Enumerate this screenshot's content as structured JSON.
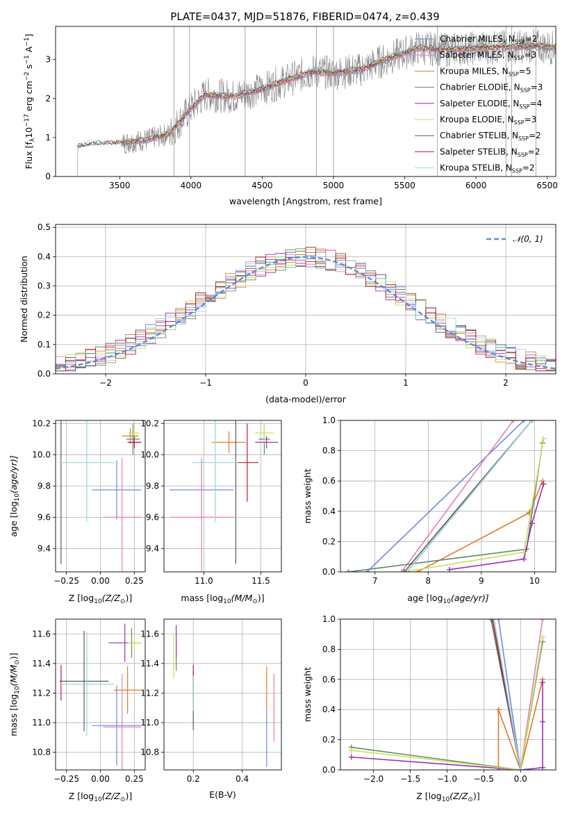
{
  "figure": {
    "title": "PLATE=0437, MJD=51876, FIBERID=0474, z=0.439"
  },
  "colors": {
    "Chabrier MILES": "#6a8ad8",
    "Salpeter MILES": "#e57fb4",
    "Kroupa MILES": "#e0782a",
    "Chabrier ELODIE": "#5f8a5f",
    "Salpeter ELODIE": "#9a2fb0",
    "Kroupa ELODIE": "#c5e05a",
    "Chabrier STELIB": "#5a5a5a",
    "Salpeter STELIB": "#b3202a",
    "Kroupa STELIB": "#93d6da",
    "data": "#808080",
    "gaussian": "#5b8ad6"
  },
  "chart_data": [
    {
      "id": "spectrum",
      "type": "line",
      "xlabel": "wavelength [Angstrom, rest frame]",
      "ylabel": "Flux [f",
      "ylabel_sub": "λ",
      "ylabel_rest": "10",
      "ylabel_exp1": "−17",
      "ylabel_mid": " erg cm",
      "ylabel_exp2": "−2",
      "ylabel_mid2": " s",
      "ylabel_exp3": "−1",
      "ylabel_mid3": " A",
      "ylabel_exp4": "−1",
      "ylabel_end": "]",
      "xlim": [
        3050,
        6560
      ],
      "ylim": [
        0,
        3.85
      ],
      "xticks": [
        3500,
        4000,
        4500,
        5000,
        5500,
        6000,
        6500
      ],
      "yticks": [
        0,
        1,
        2,
        3
      ],
      "grid": false,
      "legend_position": "top-right",
      "legend": [
        {
          "name": "Chabrier MILES",
          "nssp": "2"
        },
        {
          "name": "Salpeter MILES",
          "nssp": "3"
        },
        {
          "name": "Kroupa MILES",
          "nssp": "5"
        },
        {
          "name": "Chabrier ELODIE",
          "nssp": "3"
        },
        {
          "name": "Salpeter ELODIE",
          "nssp": "4"
        },
        {
          "name": "Kroupa ELODIE",
          "nssp": "3"
        },
        {
          "name": "Chabrier STELIB",
          "nssp": "2"
        },
        {
          "name": "Salpeter STELIB",
          "nssp": "2"
        },
        {
          "name": "Kroupa STELIB",
          "nssp": "2"
        }
      ],
      "legend_nssp_label": "N",
      "legend_nssp_sub": "SSP",
      "continuum_points": {
        "x": [
          3200,
          3300,
          3500,
          3700,
          3850,
          4000,
          4100,
          4300,
          4500,
          4700,
          4860,
          5000,
          5200,
          5400,
          5600,
          5800,
          6000,
          6200,
          6400,
          6560
        ],
        "y": [
          0.75,
          0.82,
          0.85,
          0.95,
          1.1,
          1.75,
          2.1,
          2.05,
          2.25,
          2.5,
          2.7,
          2.65,
          2.75,
          3.05,
          3.3,
          3.25,
          3.3,
          3.32,
          3.35,
          3.3
        ]
      },
      "noise_spikes": [
        3880,
        3990,
        4380,
        4880,
        5000,
        5730,
        6210,
        6250,
        6420
      ]
    },
    {
      "id": "residuals",
      "type": "histogram",
      "xlabel": "(data-model)/error",
      "ylabel": "Normed distribution",
      "xlim": [
        -2.5,
        2.5
      ],
      "ylim": [
        0,
        0.51
      ],
      "xticks": [
        -2,
        -1,
        0,
        1,
        2
      ],
      "xtick_labels": [
        "−2",
        "−1",
        "0",
        "1",
        "2"
      ],
      "yticks": [
        0.0,
        0.1,
        0.2,
        0.3,
        0.4,
        0.5
      ],
      "ytick_labels": [
        "0.0",
        "0.1",
        "0.2",
        "0.3",
        "0.4",
        "0.5"
      ],
      "grid": true,
      "legend": "𝒩(0, 1)",
      "legend_position": "top-right",
      "bin_width": 0.1,
      "bins_start": -2.5
    },
    {
      "id": "age_vs_Z",
      "type": "scatter",
      "xlabel": "Z [log",
      "xlabel_sub": "10",
      "xlabel_rest": "(Z/Z",
      "xlabel_end": ")]",
      "ylabel": "age  [log",
      "ylabel_sub": "10",
      "ylabel_rest": "(age/yr)]",
      "xlim": [
        -0.33,
        0.33
      ],
      "ylim": [
        9.25,
        10.22
      ],
      "xticks": [
        -0.25,
        0.0,
        0.25
      ],
      "xtick_labels": [
        "−0.25",
        "0.00",
        "0.25"
      ],
      "yticks": [
        9.4,
        9.6,
        9.8,
        10.0,
        10.2
      ],
      "ytick_labels": [
        "9.4",
        "9.6",
        "9.8",
        "10.0",
        "10.2"
      ],
      "points": [
        {
          "model": "Chabrier MILES",
          "x": 0.12,
          "y": 9.775,
          "xerr": 0.18,
          "yerr": 0.19
        },
        {
          "model": "Salpeter MILES",
          "x": 0.16,
          "y": 9.6,
          "xerr": 0.14,
          "yerr": 0.38
        },
        {
          "model": "Kroupa MILES",
          "x": 0.22,
          "y": 10.12,
          "xerr": 0.06,
          "yerr": 0.05
        },
        {
          "model": "Chabrier ELODIE",
          "x": 0.24,
          "y": 10.1,
          "xerr": 0.05,
          "yerr": 0.1
        },
        {
          "model": "Salpeter ELODIE",
          "x": 0.25,
          "y": 10.08,
          "xerr": 0.05,
          "yerr": 0.03
        },
        {
          "model": "Kroupa ELODIE",
          "x": 0.25,
          "y": 10.14,
          "xerr": 0.04,
          "yerr": 0.06
        },
        {
          "model": "Chabrier STELIB",
          "x": -0.29,
          "y": 9.95,
          "xerr": 0.0,
          "yerr": 0.65
        },
        {
          "model": "Salpeter STELIB",
          "x": 0.25,
          "y": 10.08,
          "xerr": 0.05,
          "yerr": 0.04
        },
        {
          "model": "Kroupa STELIB",
          "x": -0.1,
          "y": 9.95,
          "xerr": 0.2,
          "yerr": 0.38
        }
      ]
    },
    {
      "id": "age_vs_mass",
      "type": "scatter",
      "xlabel": "mass [log",
      "xlabel_sub": "10",
      "xlabel_rest": "(M/M",
      "xlabel_end": ")]",
      "xlim": [
        10.65,
        11.68
      ],
      "ylim": [
        9.25,
        10.22
      ],
      "xticks": [
        11.0,
        11.5
      ],
      "xtick_labels": [
        "11.0",
        "11.5"
      ],
      "yticks": [
        9.4,
        9.6,
        9.8,
        10.0,
        10.2
      ],
      "ytick_labels": [
        "9.4",
        "9.6",
        "9.8",
        "10.0",
        "10.2"
      ],
      "points": [
        {
          "model": "Chabrier MILES",
          "x": 10.98,
          "y": 9.775,
          "xerr": 0.28,
          "yerr": 0.19
        },
        {
          "model": "Salpeter MILES",
          "x": 10.98,
          "y": 9.6,
          "xerr": 0.28,
          "yerr": 0.38
        },
        {
          "model": "Kroupa MILES",
          "x": 11.22,
          "y": 10.08,
          "xerr": 0.15,
          "yerr": 0.07
        },
        {
          "model": "Chabrier ELODIE",
          "x": 11.53,
          "y": 10.1,
          "xerr": 0.05,
          "yerr": 0.1
        },
        {
          "model": "Salpeter ELODIE",
          "x": 11.55,
          "y": 10.08,
          "xerr": 0.1,
          "yerr": 0.04
        },
        {
          "model": "Kroupa ELODIE",
          "x": 11.53,
          "y": 10.14,
          "xerr": 0.08,
          "yerr": 0.06
        },
        {
          "model": "Chabrier STELIB",
          "x": 11.28,
          "y": 9.95,
          "xerr": 0.0,
          "yerr": 0.65
        },
        {
          "model": "Salpeter STELIB",
          "x": 11.38,
          "y": 9.95,
          "xerr": 0.1,
          "yerr": 0.25
        },
        {
          "model": "Kroupa STELIB",
          "x": 11.1,
          "y": 9.95,
          "xerr": 0.2,
          "yerr": 0.38
        }
      ]
    },
    {
      "id": "weight_vs_age",
      "type": "line",
      "xlabel": "age  [log",
      "xlabel_sub": "10",
      "xlabel_rest": "(age/yr)]",
      "ylabel": "mass weight",
      "xlim": [
        6.35,
        10.4
      ],
      "ylim": [
        0,
        1
      ],
      "xticks": [
        7,
        8,
        9,
        10
      ],
      "yticks": [
        0.0,
        0.2,
        0.4,
        0.6,
        0.8,
        1.0
      ],
      "ytick_labels": [
        "0.0",
        "0.2",
        "0.4",
        "0.6",
        "0.8",
        "1.0"
      ],
      "grid": true,
      "series": [
        {
          "model": "Chabrier MILES",
          "x": [
            6.85,
            9.8
          ],
          "y": [
            0.0,
            1.0
          ]
        },
        {
          "model": "Salpeter MILES",
          "x": [
            7.5,
            9.6
          ],
          "y": [
            0.0,
            1.0
          ]
        },
        {
          "model": "Kroupa MILES",
          "x": [
            7.8,
            9.9,
            10.15
          ],
          "y": [
            0.0,
            0.39,
            0.6
          ]
        },
        {
          "model": "Chabrier ELODIE",
          "x": [
            6.5,
            9.85,
            10.15
          ],
          "y": [
            0.0,
            0.15,
            0.85
          ]
        },
        {
          "model": "Salpeter ELODIE",
          "x": [
            8.4,
            9.8,
            9.95,
            10.17
          ],
          "y": [
            0.015,
            0.085,
            0.32,
            0.58
          ]
        },
        {
          "model": "Kroupa ELODIE",
          "x": [
            7.55,
            9.8,
            10.17
          ],
          "y": [
            0.0,
            0.13,
            0.88
          ]
        },
        {
          "model": "Chabrier STELIB",
          "x": [
            7.55,
            9.95
          ],
          "y": [
            0.0,
            1.0
          ]
        },
        {
          "model": "Salpeter STELIB",
          "x": [
            7.6,
            9.95
          ],
          "y": [
            0.0,
            1.0
          ]
        },
        {
          "model": "Kroupa STELIB",
          "x": [
            7.6,
            9.95
          ],
          "y": [
            0.0,
            1.0
          ]
        }
      ]
    },
    {
      "id": "mass_vs_Z",
      "type": "scatter",
      "xlabel": "Z [log",
      "xlabel_sub": "10",
      "xlabel_rest": "(Z/Z",
      "xlabel_end": ")]",
      "ylabel": "mass [log",
      "ylabel_sub": "10",
      "ylabel_rest": "(M/M",
      "ylabel_end": ")]",
      "xlim": [
        -0.33,
        0.33
      ],
      "ylim": [
        10.68,
        11.7
      ],
      "xticks": [
        -0.25,
        0.0,
        0.25
      ],
      "xtick_labels": [
        "−0.25",
        "0.00",
        "0.25"
      ],
      "yticks": [
        10.8,
        11.0,
        11.2,
        11.4,
        11.6
      ],
      "ytick_labels": [
        "10.8",
        "11.0",
        "11.2",
        "11.4",
        "11.6"
      ],
      "points": [
        {
          "model": "Chabrier MILES",
          "x": 0.12,
          "y": 10.98,
          "xerr": 0.18,
          "yerr": 0.27
        },
        {
          "model": "Salpeter MILES",
          "x": 0.16,
          "y": 10.97,
          "xerr": 0.14,
          "yerr": 0.36
        },
        {
          "model": "Kroupa MILES",
          "x": 0.2,
          "y": 11.22,
          "xerr": 0.1,
          "yerr": 0.16
        },
        {
          "model": "Chabrier ELODIE",
          "x": 0.23,
          "y": 11.54,
          "xerr": 0.06,
          "yerr": 0.1
        },
        {
          "model": "Salpeter ELODIE",
          "x": 0.18,
          "y": 11.54,
          "xerr": 0.12,
          "yerr": 0.13
        },
        {
          "model": "Kroupa ELODIE",
          "x": 0.25,
          "y": 11.54,
          "xerr": 0.05,
          "yerr": 0.06
        },
        {
          "model": "Chabrier STELIB",
          "x": -0.12,
          "y": 11.28,
          "xerr": 0.18,
          "yerr": 0.34
        },
        {
          "model": "Salpeter STELIB",
          "x": -0.29,
          "y": 11.27,
          "xerr": 0.0,
          "yerr": 0.12
        },
        {
          "model": "Kroupa STELIB",
          "x": -0.1,
          "y": 11.26,
          "xerr": 0.2,
          "yerr": 0.35
        }
      ]
    },
    {
      "id": "mass_vs_ebv",
      "type": "scatter",
      "xlabel": "E(B-V)",
      "xlim": [
        0.08,
        0.56
      ],
      "ylim": [
        10.68,
        11.7
      ],
      "xticks": [
        0.2,
        0.4
      ],
      "xtick_labels": [
        "0.2",
        "0.4"
      ],
      "yticks": [
        10.8,
        11.0,
        11.2,
        11.4,
        11.6
      ],
      "ytick_labels": [
        "10.8",
        "11.0",
        "11.2",
        "11.4",
        "11.6"
      ],
      "points": [
        {
          "model": "Chabrier MILES",
          "x": 0.5,
          "y": 10.88,
          "xerr": 0.0,
          "yerr": 0.18
        },
        {
          "model": "Salpeter MILES",
          "x": 0.53,
          "y": 11.1,
          "xerr": 0.0,
          "yerr": 0.23
        },
        {
          "model": "Kroupa MILES",
          "x": 0.5,
          "y": 11.22,
          "xerr": 0.0,
          "yerr": 0.16
        },
        {
          "model": "Chabrier ELODIE",
          "x": 0.13,
          "y": 11.45,
          "xerr": 0.0,
          "yerr": 0.1
        },
        {
          "model": "Salpeter ELODIE",
          "x": 0.13,
          "y": 11.55,
          "xerr": 0.0,
          "yerr": 0.11
        },
        {
          "model": "Kroupa ELODIE",
          "x": 0.12,
          "y": 11.45,
          "xerr": 0.0,
          "yerr": 0.15
        },
        {
          "model": "Chabrier STELIB",
          "x": 0.2,
          "y": 11.15,
          "xerr": 0.0,
          "yerr": 0.2
        },
        {
          "model": "Salpeter STELIB",
          "x": 0.2,
          "y": 11.27,
          "xerr": 0.0,
          "yerr": 0.12
        },
        {
          "model": "Kroupa STELIB",
          "x": 0.2,
          "y": 11.2,
          "xerr": 0.0,
          "yerr": 0.12
        }
      ]
    },
    {
      "id": "weight_vs_Z",
      "type": "line",
      "xlabel": "Z [log",
      "xlabel_sub": "10",
      "xlabel_rest": "(Z/Z",
      "xlabel_end": ")]",
      "ylabel": "mass weight",
      "xlim": [
        -2.45,
        0.48
      ],
      "ylim": [
        0,
        1
      ],
      "xticks": [
        -2.0,
        -1.5,
        -1.0,
        -0.5,
        0.0
      ],
      "xtick_labels": [
        "−2.0",
        "−1.5",
        "−1.0",
        "−0.5",
        "0.0"
      ],
      "yticks": [
        0.0,
        0.2,
        0.4,
        0.6,
        0.8,
        1.0
      ],
      "ytick_labels": [
        "0.0",
        "0.2",
        "0.4",
        "0.6",
        "0.8",
        "1.0"
      ],
      "grid": true,
      "series": [
        {
          "model": "Chabrier MILES",
          "x": [
            0.0,
            -0.3
          ],
          "y": [
            0.0,
            1.0
          ]
        },
        {
          "model": "Salpeter MILES",
          "x": [
            0.0,
            0.3
          ],
          "y": [
            0.0,
            1.0
          ]
        },
        {
          "model": "Kroupa MILES",
          "x": [
            -0.3,
            -0.3,
            0.0,
            0.3
          ],
          "y": [
            0.0,
            0.4,
            0.0,
            0.6
          ]
        },
        {
          "model": "Chabrier ELODIE",
          "x": [
            -2.3,
            0.0,
            0.3
          ],
          "y": [
            0.15,
            0.0,
            0.85
          ]
        },
        {
          "model": "Salpeter ELODIE",
          "x": [
            -2.3,
            0.0,
            0.3,
            0.3,
            0.3
          ],
          "y": [
            0.085,
            0.0,
            0.015,
            0.32,
            0.58
          ]
        },
        {
          "model": "Kroupa ELODIE",
          "x": [
            -2.3,
            0.0,
            0.3
          ],
          "y": [
            0.13,
            0.0,
            0.88
          ]
        },
        {
          "model": "Chabrier STELIB",
          "x": [
            -0.4,
            0.0
          ],
          "y": [
            1.0,
            0.0
          ]
        },
        {
          "model": "Salpeter STELIB",
          "x": [
            -0.38,
            0.0
          ],
          "y": [
            1.0,
            0.0
          ]
        },
        {
          "model": "Kroupa STELIB",
          "x": [
            -0.36,
            0.0
          ],
          "y": [
            1.0,
            0.0
          ]
        }
      ]
    }
  ]
}
